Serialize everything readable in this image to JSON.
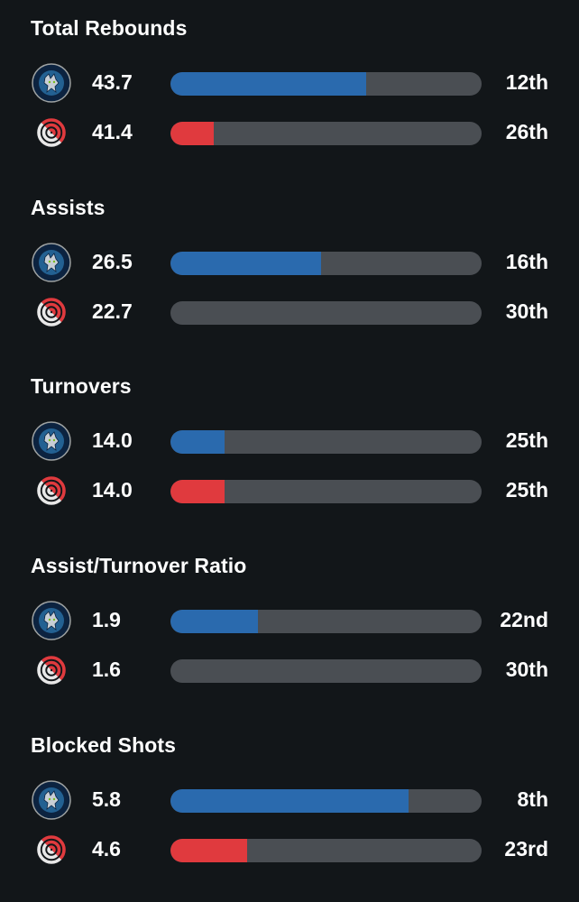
{
  "colors": {
    "background": "#121619",
    "track": "#4a4e53",
    "timberwolves_bar": "#2a6aae",
    "blazers_bar": "#e03a3e"
  },
  "teams": {
    "top": {
      "logo_icon": "minnesota-timberwolves-logo-icon"
    },
    "bottom": {
      "logo_icon": "portland-trail-blazers-logo-icon"
    }
  },
  "stats": [
    {
      "title": "Total Rebounds",
      "rows": [
        {
          "value": "43.7",
          "rank": "12th",
          "fill_fraction": 0.63
        },
        {
          "value": "41.4",
          "rank": "26th",
          "fill_fraction": 0.14
        }
      ]
    },
    {
      "title": "Assists",
      "rows": [
        {
          "value": "26.5",
          "rank": "16th",
          "fill_fraction": 0.485
        },
        {
          "value": "22.7",
          "rank": "30th",
          "fill_fraction": 0.0
        }
      ]
    },
    {
      "title": "Turnovers",
      "rows": [
        {
          "value": "14.0",
          "rank": "25th",
          "fill_fraction": 0.175
        },
        {
          "value": "14.0",
          "rank": "25th",
          "fill_fraction": 0.175
        }
      ]
    },
    {
      "title": "Assist/Turnover Ratio",
      "rows": [
        {
          "value": "1.9",
          "rank": "22nd",
          "fill_fraction": 0.28
        },
        {
          "value": "1.6",
          "rank": "30th",
          "fill_fraction": 0.0
        }
      ]
    },
    {
      "title": "Blocked Shots",
      "rows": [
        {
          "value": "5.8",
          "rank": "8th",
          "fill_fraction": 0.765
        },
        {
          "value": "4.6",
          "rank": "23rd",
          "fill_fraction": 0.245
        }
      ]
    }
  ]
}
